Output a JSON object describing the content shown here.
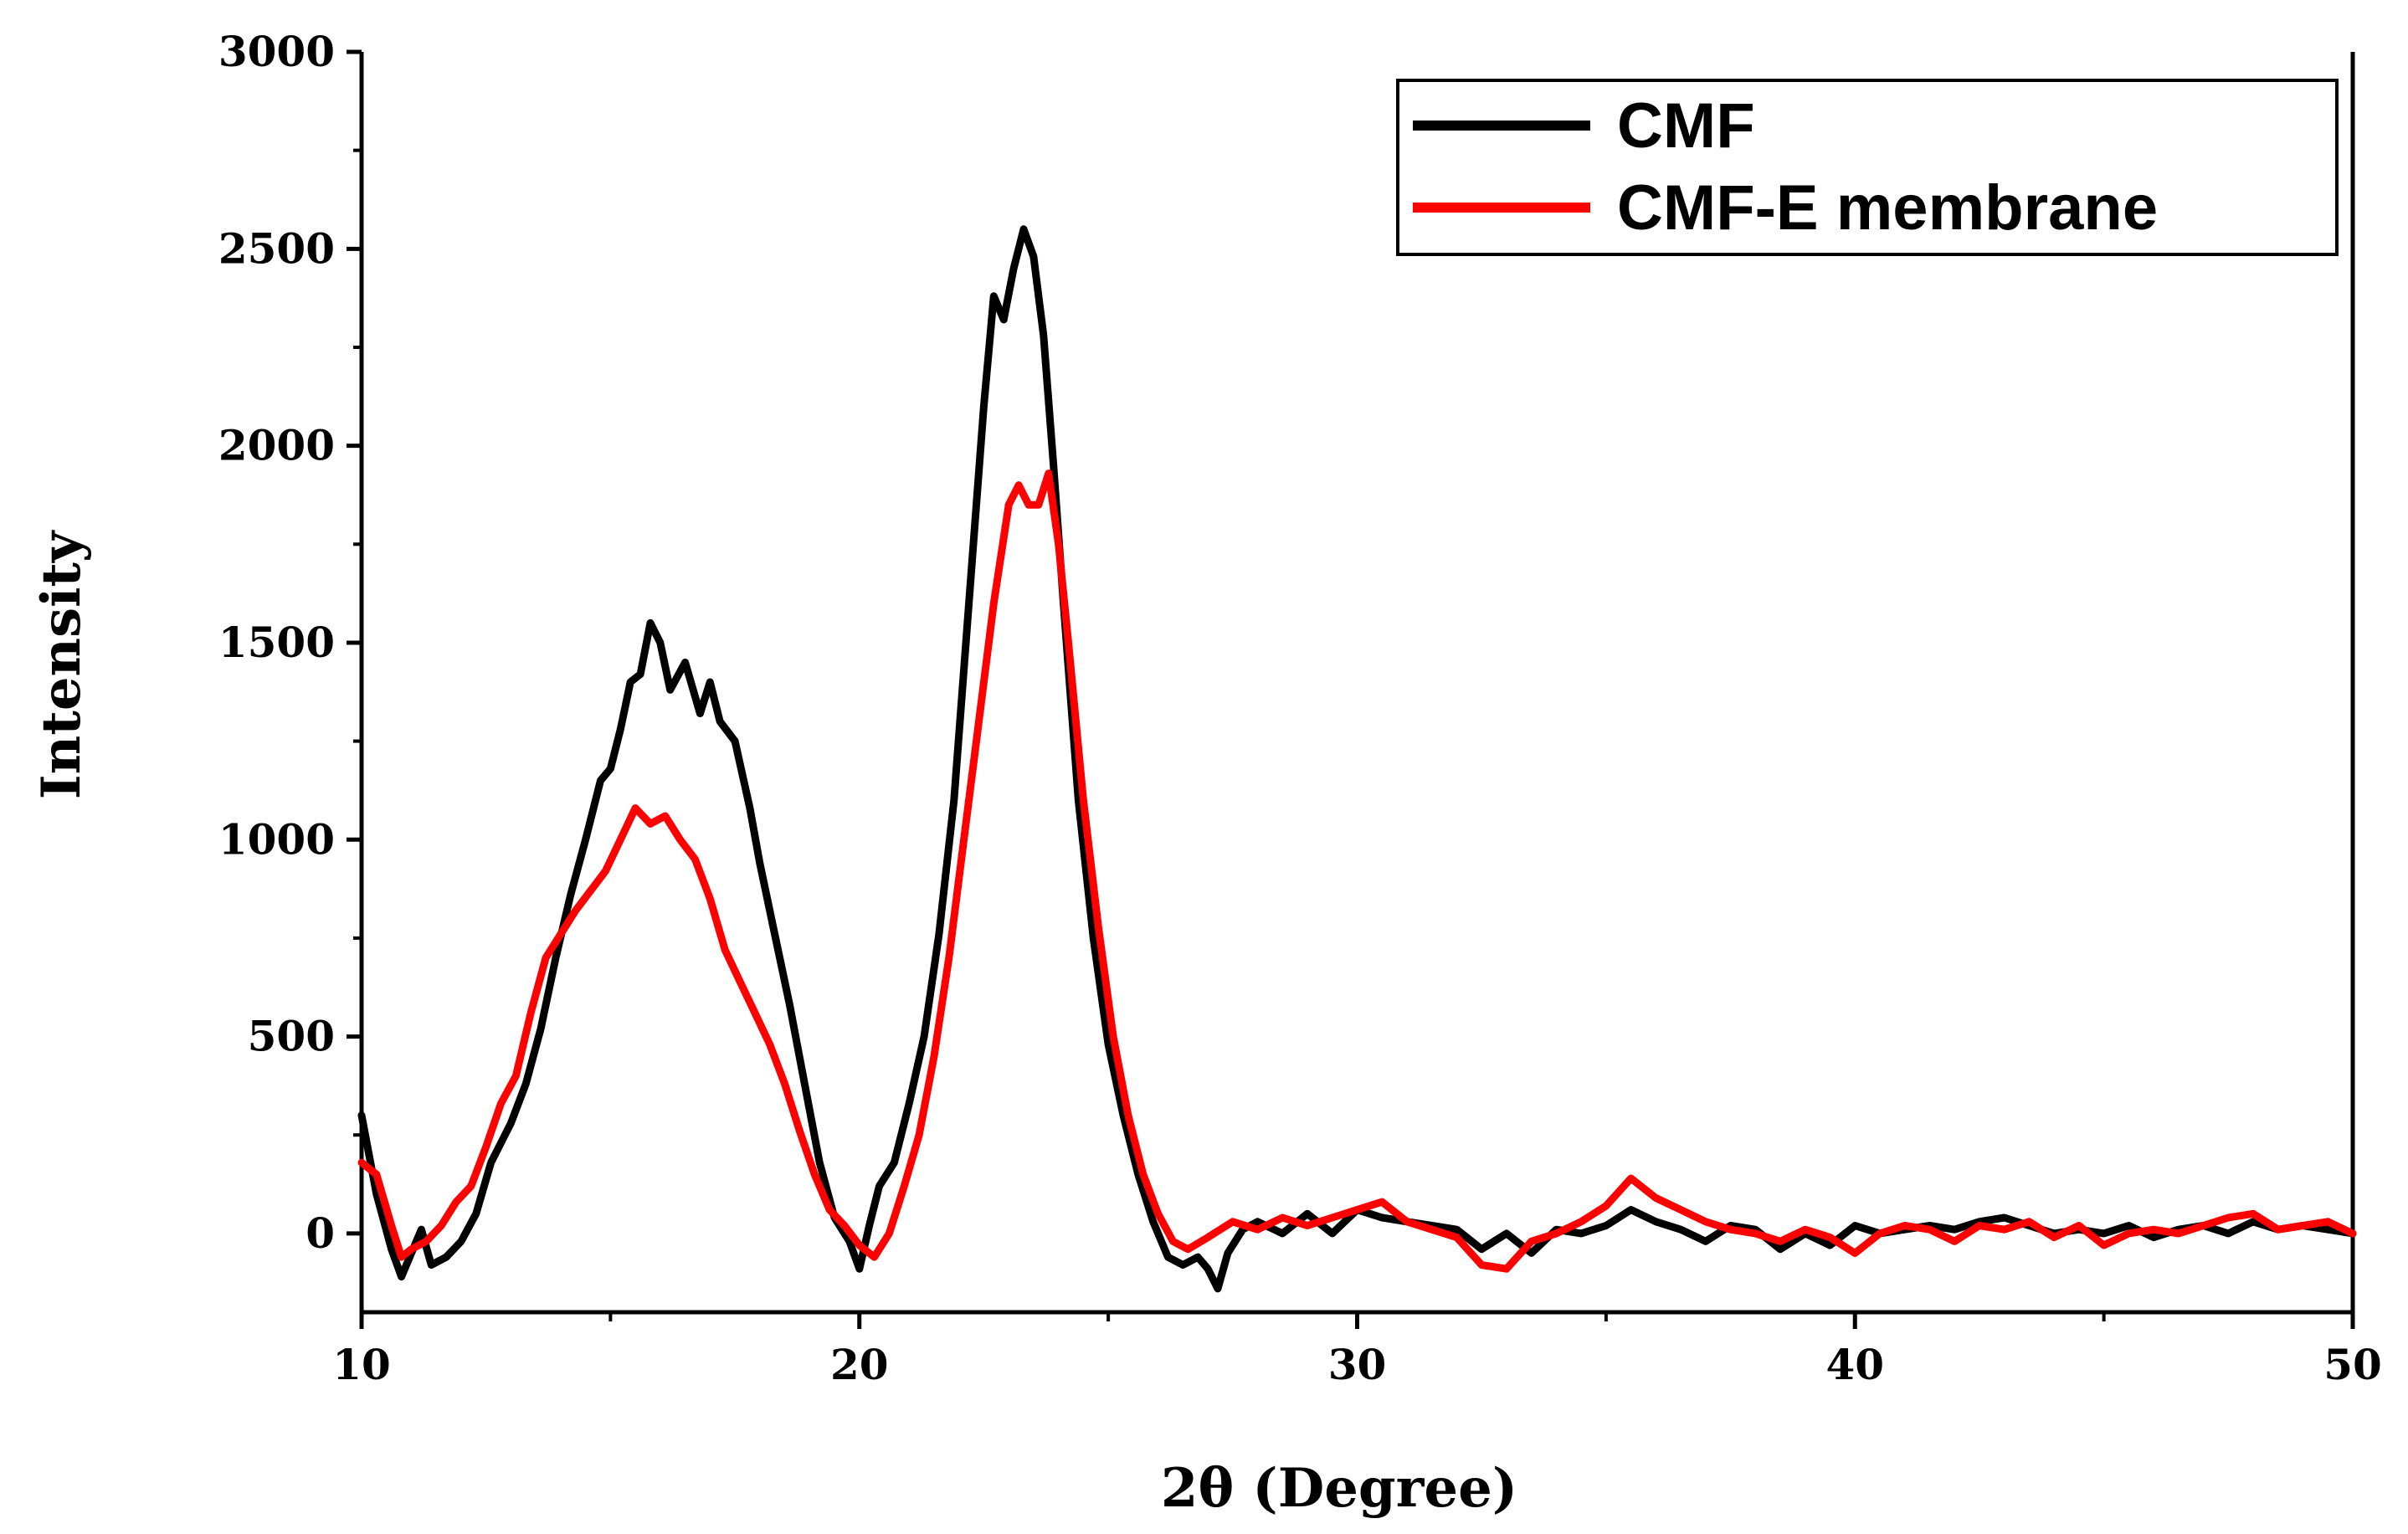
{
  "chart_data": {
    "type": "line",
    "title": "",
    "xlabel": "2θ (Degree)",
    "ylabel": "Intensity",
    "xlim": [
      10,
      50
    ],
    "ylim": [
      -200,
      3000
    ],
    "xticks": [
      10,
      20,
      30,
      40,
      50
    ],
    "xtick_labels": [
      "10",
      "20",
      "30",
      "40",
      "50"
    ],
    "yticks": [
      0,
      500,
      1000,
      1500,
      2000,
      2500,
      3000
    ],
    "ytick_labels": [
      "0",
      "500",
      "1000",
      "1500",
      "2000",
      "2500",
      "3000"
    ],
    "grid": false,
    "legend_position": "top-right",
    "series": [
      {
        "name": "CMF",
        "color": "#000000",
        "x": [
          10.0,
          10.3,
          10.6,
          10.8,
          11.0,
          11.2,
          11.4,
          11.7,
          12.0,
          12.3,
          12.6,
          13.0,
          13.3,
          13.6,
          13.9,
          14.2,
          14.5,
          14.8,
          15.0,
          15.2,
          15.4,
          15.6,
          15.8,
          16.0,
          16.2,
          16.5,
          16.8,
          17.0,
          17.2,
          17.5,
          17.8,
          18.0,
          18.3,
          18.6,
          18.9,
          19.2,
          19.5,
          19.8,
          20.0,
          20.2,
          20.4,
          20.7,
          21.0,
          21.3,
          21.6,
          21.9,
          22.2,
          22.5,
          22.7,
          22.9,
          23.1,
          23.3,
          23.5,
          23.7,
          23.9,
          24.1,
          24.4,
          24.7,
          25.0,
          25.3,
          25.6,
          25.9,
          26.2,
          26.5,
          26.8,
          27.0,
          27.2,
          27.4,
          27.7,
          28.0,
          28.5,
          29.0,
          29.5,
          30.0,
          30.5,
          31.0,
          31.5,
          32.0,
          32.5,
          33.0,
          33.5,
          34.0,
          34.5,
          35.0,
          35.5,
          36.0,
          36.5,
          37.0,
          37.5,
          38.0,
          38.5,
          39.0,
          39.5,
          40.0,
          40.5,
          41.0,
          41.5,
          42.0,
          42.5,
          43.0,
          43.5,
          44.0,
          44.5,
          45.0,
          45.5,
          46.0,
          46.5,
          47.0,
          47.5,
          48.0,
          48.5,
          49.0,
          49.5,
          50.0
        ],
        "values": [
          300,
          100,
          -40,
          -110,
          -50,
          10,
          -80,
          -60,
          -20,
          50,
          180,
          280,
          380,
          520,
          700,
          860,
          1000,
          1150,
          1180,
          1280,
          1400,
          1420,
          1550,
          1500,
          1380,
          1450,
          1320,
          1400,
          1300,
          1250,
          1080,
          940,
          760,
          580,
          380,
          180,
          40,
          -20,
          -90,
          20,
          120,
          180,
          330,
          500,
          760,
          1100,
          1600,
          2100,
          2380,
          2320,
          2450,
          2550,
          2480,
          2280,
          1950,
          1600,
          1100,
          750,
          480,
          300,
          150,
          30,
          -60,
          -80,
          -60,
          -90,
          -140,
          -50,
          10,
          30,
          0,
          50,
          0,
          60,
          40,
          30,
          20,
          10,
          -40,
          0,
          -50,
          10,
          0,
          20,
          60,
          30,
          10,
          -20,
          20,
          10,
          -40,
          0,
          -30,
          20,
          0,
          10,
          20,
          10,
          30,
          40,
          20,
          0,
          10,
          0,
          20,
          -10,
          10,
          20,
          0,
          30,
          10,
          20,
          10,
          0
        ]
      },
      {
        "name": "CMF-E membrane",
        "color": "#ff0000",
        "x": [
          10.0,
          10.3,
          10.6,
          10.8,
          11.0,
          11.3,
          11.6,
          11.9,
          12.2,
          12.5,
          12.8,
          13.1,
          13.4,
          13.7,
          14.0,
          14.3,
          14.6,
          14.9,
          15.2,
          15.5,
          15.8,
          16.1,
          16.4,
          16.7,
          17.0,
          17.3,
          17.6,
          17.9,
          18.2,
          18.5,
          18.8,
          19.1,
          19.4,
          19.7,
          20.0,
          20.3,
          20.6,
          20.9,
          21.2,
          21.5,
          21.8,
          22.1,
          22.4,
          22.7,
          23.0,
          23.2,
          23.4,
          23.6,
          23.8,
          24.0,
          24.2,
          24.5,
          24.8,
          25.1,
          25.4,
          25.7,
          26.0,
          26.3,
          26.6,
          27.0,
          27.5,
          28.0,
          28.5,
          29.0,
          29.5,
          30.0,
          30.5,
          31.0,
          31.5,
          32.0,
          32.5,
          33.0,
          33.5,
          34.0,
          34.5,
          35.0,
          35.5,
          36.0,
          36.5,
          37.0,
          37.5,
          38.0,
          38.5,
          39.0,
          39.5,
          40.0,
          40.5,
          41.0,
          41.5,
          42.0,
          42.5,
          43.0,
          43.5,
          44.0,
          44.5,
          45.0,
          45.5,
          46.0,
          46.5,
          47.0,
          47.5,
          48.0,
          48.5,
          49.0,
          49.5,
          50.0
        ],
        "values": [
          180,
          150,
          20,
          -60,
          -40,
          -20,
          20,
          80,
          120,
          220,
          330,
          400,
          560,
          700,
          760,
          820,
          870,
          920,
          1000,
          1080,
          1040,
          1060,
          1000,
          950,
          850,
          720,
          640,
          560,
          480,
          380,
          260,
          150,
          60,
          20,
          -30,
          -60,
          0,
          120,
          250,
          450,
          700,
          1000,
          1300,
          1600,
          1850,
          1900,
          1850,
          1850,
          1930,
          1750,
          1500,
          1100,
          780,
          500,
          300,
          150,
          50,
          -20,
          -40,
          -10,
          30,
          10,
          40,
          20,
          40,
          60,
          80,
          30,
          10,
          -10,
          -80,
          -90,
          -20,
          0,
          30,
          70,
          140,
          90,
          60,
          30,
          10,
          0,
          -20,
          10,
          -10,
          -50,
          0,
          20,
          10,
          -20,
          20,
          10,
          30,
          -10,
          20,
          -30,
          0,
          10,
          0,
          20,
          40,
          50,
          10,
          20,
          30,
          0
        ]
      }
    ]
  }
}
